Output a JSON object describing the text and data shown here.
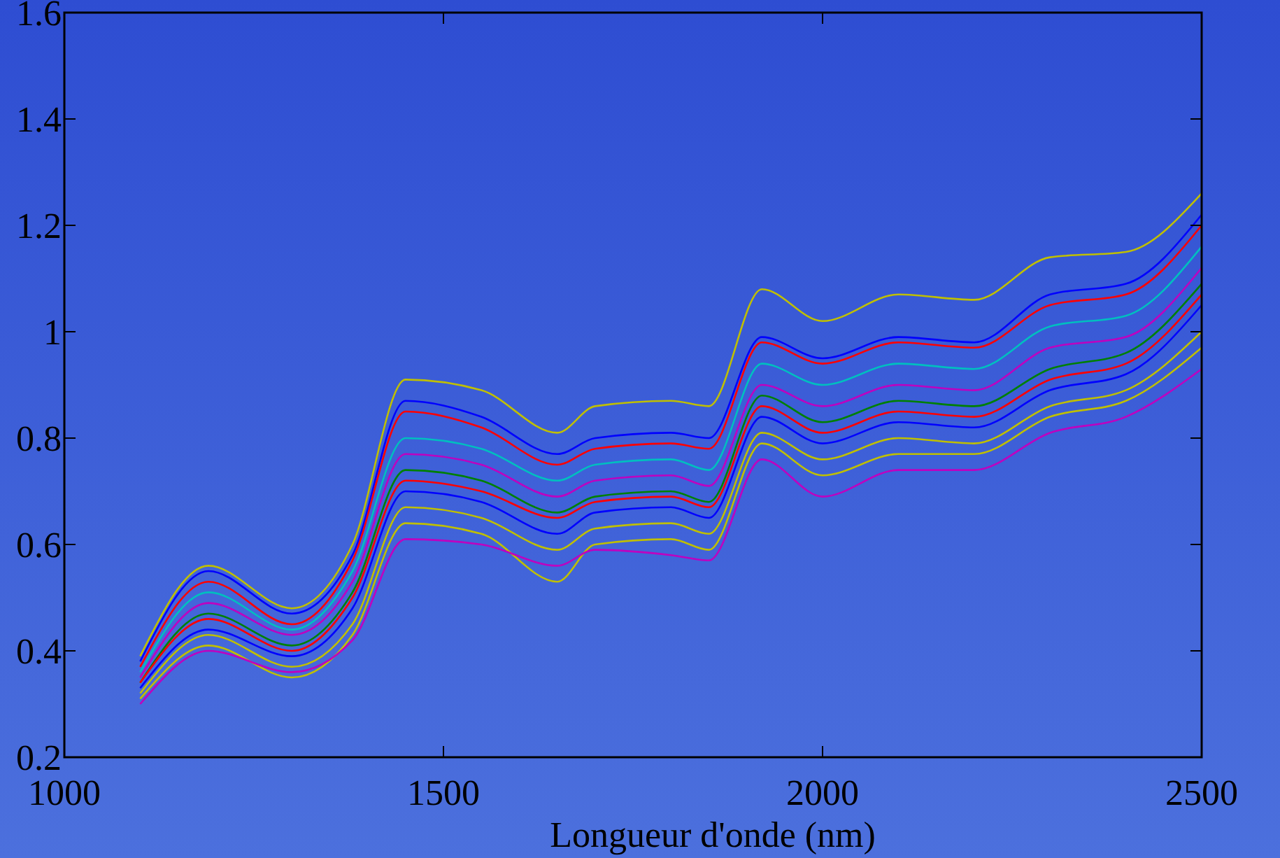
{
  "chart_data": {
    "type": "line",
    "xlabel": "Longueur d'onde (nm)",
    "x": [
      1100,
      1190,
      1300,
      1380,
      1450,
      1550,
      1650,
      1700,
      1800,
      1850,
      1920,
      2000,
      2100,
      2200,
      2300,
      2400,
      2500
    ],
    "xlim": [
      1000,
      2500
    ],
    "xticks": [
      1000,
      1500,
      2000,
      2500
    ],
    "ylim": [
      0.2,
      1.6
    ],
    "yticks": [
      0.2,
      0.4,
      0.6,
      0.8,
      1,
      1.2,
      1.4,
      1.6
    ],
    "grid": false,
    "marker": "none",
    "line_style": "solid",
    "series": [
      {
        "color": "#bfbf00",
        "values": [
          0.39,
          0.56,
          0.48,
          0.6,
          0.91,
          0.89,
          0.81,
          0.86,
          0.87,
          0.86,
          1.08,
          1.02,
          1.07,
          1.06,
          1.14,
          1.15,
          1.26
        ]
      },
      {
        "color": "#0000ff",
        "values": [
          0.38,
          0.55,
          0.47,
          0.58,
          0.87,
          0.84,
          0.77,
          0.8,
          0.81,
          0.8,
          0.99,
          0.95,
          0.99,
          0.98,
          1.07,
          1.09,
          1.22
        ]
      },
      {
        "color": "#ff0000",
        "values": [
          0.37,
          0.53,
          0.45,
          0.57,
          0.85,
          0.82,
          0.75,
          0.78,
          0.79,
          0.78,
          0.98,
          0.94,
          0.98,
          0.97,
          1.05,
          1.07,
          1.2
        ]
      },
      {
        "color": "#00bfbf",
        "values": [
          0.36,
          0.51,
          0.44,
          0.55,
          0.8,
          0.78,
          0.72,
          0.75,
          0.76,
          0.74,
          0.94,
          0.9,
          0.94,
          0.93,
          1.01,
          1.03,
          1.16
        ]
      },
      {
        "color": "#bf00bf",
        "values": [
          0.35,
          0.49,
          0.43,
          0.53,
          0.77,
          0.75,
          0.69,
          0.72,
          0.73,
          0.71,
          0.9,
          0.86,
          0.9,
          0.89,
          0.97,
          0.99,
          1.12
        ]
      },
      {
        "color": "#008000",
        "values": [
          0.34,
          0.47,
          0.41,
          0.51,
          0.74,
          0.72,
          0.66,
          0.69,
          0.7,
          0.68,
          0.88,
          0.83,
          0.87,
          0.86,
          0.93,
          0.96,
          1.09
        ]
      },
      {
        "color": "#ff0000",
        "values": [
          0.34,
          0.46,
          0.4,
          0.5,
          0.72,
          0.7,
          0.65,
          0.68,
          0.69,
          0.67,
          0.86,
          0.81,
          0.85,
          0.84,
          0.91,
          0.94,
          1.07
        ]
      },
      {
        "color": "#0000ff",
        "values": [
          0.33,
          0.44,
          0.39,
          0.48,
          0.7,
          0.68,
          0.62,
          0.66,
          0.67,
          0.65,
          0.84,
          0.79,
          0.83,
          0.82,
          0.89,
          0.92,
          1.05
        ]
      },
      {
        "color": "#bfbf00",
        "values": [
          0.32,
          0.43,
          0.37,
          0.45,
          0.67,
          0.65,
          0.59,
          0.63,
          0.64,
          0.62,
          0.81,
          0.76,
          0.8,
          0.79,
          0.86,
          0.89,
          1
        ]
      },
      {
        "color": "#bfbf00",
        "values": [
          0.31,
          0.41,
          0.35,
          0.43,
          0.64,
          0.62,
          0.53,
          0.6,
          0.61,
          0.59,
          0.79,
          0.73,
          0.77,
          0.77,
          0.84,
          0.87,
          0.97
        ]
      },
      {
        "color": "#bf00bf",
        "values": [
          0.3,
          0.4,
          0.36,
          0.42,
          0.61,
          0.6,
          0.56,
          0.59,
          0.58,
          0.57,
          0.76,
          0.69,
          0.74,
          0.74,
          0.81,
          0.84,
          0.93
        ]
      }
    ]
  }
}
